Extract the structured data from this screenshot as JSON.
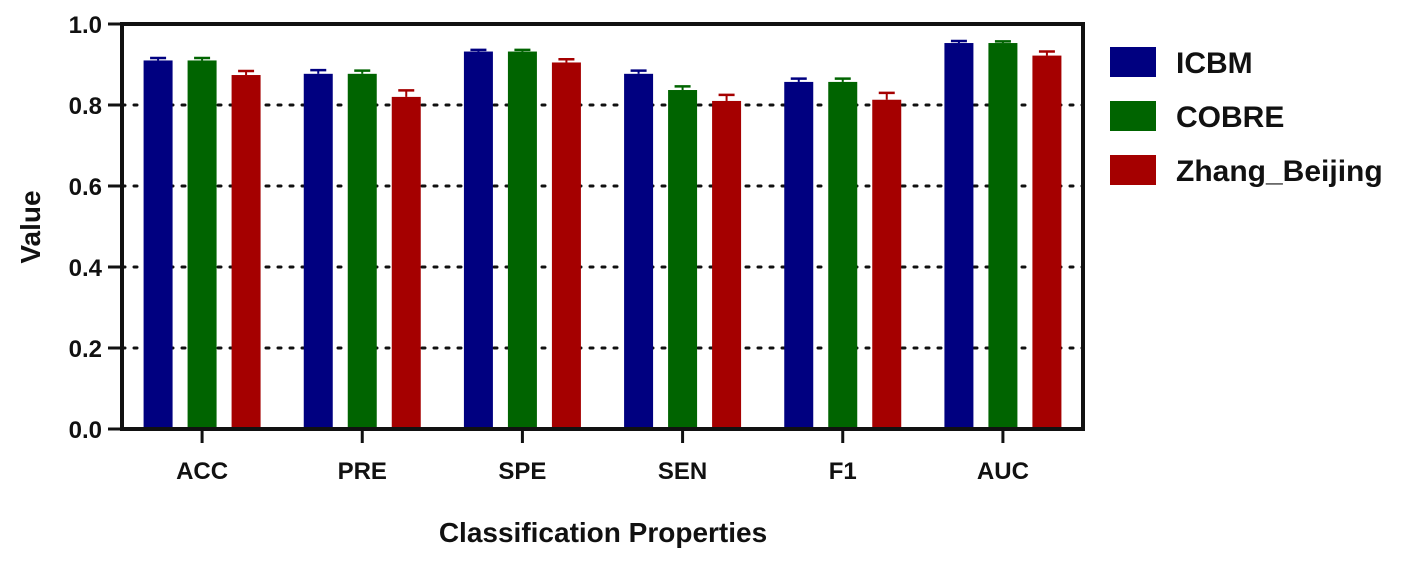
{
  "chart_data": {
    "type": "bar",
    "title": "",
    "xlabel": "Classification Properties",
    "ylabel": "Value",
    "ylim": [
      0,
      1.0
    ],
    "yticks": [
      "0.0",
      "0.2",
      "0.4",
      "0.6",
      "0.8",
      "1.0"
    ],
    "grid": "horizontal dotted",
    "legend_position": "right",
    "categories": [
      "ACC",
      "PRE",
      "SPE",
      "SEN",
      "F1",
      "AUC"
    ],
    "series": [
      {
        "name": "ICBM",
        "color": "#000080",
        "values": [
          0.91,
          0.877,
          0.932,
          0.877,
          0.857,
          0.953
        ],
        "errors": [
          0.006,
          0.009,
          0.004,
          0.008,
          0.008,
          0.005
        ]
      },
      {
        "name": "COBRE",
        "color": "#006400",
        "values": [
          0.91,
          0.877,
          0.932,
          0.837,
          0.857,
          0.953
        ],
        "errors": [
          0.006,
          0.008,
          0.004,
          0.009,
          0.008,
          0.004
        ]
      },
      {
        "name": "Zhang_Beijing",
        "color": "#A50000",
        "values": [
          0.874,
          0.82,
          0.905,
          0.81,
          0.813,
          0.922
        ],
        "errors": [
          0.01,
          0.016,
          0.008,
          0.015,
          0.017,
          0.01
        ]
      }
    ]
  }
}
